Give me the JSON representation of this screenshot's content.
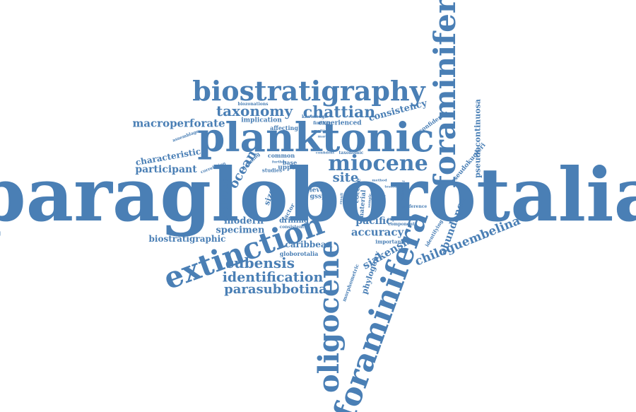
{
  "colors": {
    "word": "#4a7fb5",
    "background": "#ffffff"
  },
  "words": [
    {
      "id": "paragloborotalia",
      "text": "paragloborotalia"
    },
    {
      "id": "planktonic",
      "text": "planktonic"
    },
    {
      "id": "biostratigraphy",
      "text": "biostratigraphy"
    },
    {
      "id": "foraminiferal",
      "text": "foraminiferal"
    },
    {
      "id": "foraminifera",
      "text": "foraminifera"
    },
    {
      "id": "extinction",
      "text": "extinction"
    },
    {
      "id": "oligocene",
      "text": "oligocene"
    },
    {
      "id": "miocene",
      "text": "miocene"
    },
    {
      "id": "taxonomy",
      "text": "taxonomy"
    },
    {
      "id": "chattian",
      "text": "chattian"
    },
    {
      "id": "macroperforate",
      "text": "macroperforate"
    },
    {
      "id": "consistency",
      "text": "consistency"
    },
    {
      "id": "characteristic",
      "text": "characteristic"
    },
    {
      "id": "participant",
      "text": "participant"
    },
    {
      "id": "biostratigraphic",
      "text": "biostratigraphic"
    },
    {
      "id": "cubensis",
      "text": "cubensis"
    },
    {
      "id": "identification",
      "text": "identification"
    },
    {
      "id": "parasubbotina",
      "text": "parasubbotina"
    },
    {
      "id": "chiloguembelina",
      "text": "chiloguembelina"
    },
    {
      "id": "accuracy",
      "text": "accuracy"
    },
    {
      "id": "pacific",
      "text": "pacific"
    },
    {
      "id": "specimen",
      "text": "specimen"
    },
    {
      "id": "modern",
      "text": "modern"
    },
    {
      "id": "ocean",
      "text": "ocean"
    },
    {
      "id": "site",
      "text": "site"
    },
    {
      "id": "siakensis",
      "text": "siakensis"
    },
    {
      "id": "abundance",
      "text": "abundance"
    },
    {
      "id": "evolution",
      "text": "evolution"
    },
    {
      "id": "phylogeny",
      "text": "phylogeny"
    },
    {
      "id": "caribbean",
      "text": "caribbean"
    },
    {
      "id": "globorotalia",
      "text": "globorotalia"
    },
    {
      "id": "pseudocontinuosa",
      "text": "pseudocontinuosa"
    },
    {
      "id": "pseudokugleri",
      "text": "pseudokugleri"
    },
    {
      "id": "confidence",
      "text": "confidence"
    },
    {
      "id": "implication",
      "text": "implication"
    },
    {
      "id": "affecting",
      "text": "affecting"
    },
    {
      "id": "biozonations",
      "text": "biozonations"
    },
    {
      "id": "experienced",
      "text": "experienced"
    },
    {
      "id": "knowledge",
      "text": "knowledge"
    },
    {
      "id": "finding",
      "text": "finding"
    },
    {
      "id": "multiple",
      "text": "multiple"
    },
    {
      "id": "marker",
      "text": "marker"
    },
    {
      "id": "correlation",
      "text": "correlation"
    },
    {
      "id": "assemblage",
      "text": "assemblage"
    },
    {
      "id": "defining",
      "text": "defining"
    },
    {
      "id": "common",
      "text": "common"
    },
    {
      "id": "base",
      "text": "base"
    },
    {
      "id": "upper",
      "text": "upper"
    },
    {
      "id": "studies",
      "text": "studies"
    },
    {
      "id": "confident",
      "text": "confident"
    },
    {
      "id": "taxonomic",
      "text": "taxonomic"
    },
    {
      "id": "level",
      "text": "level"
    },
    {
      "id": "gssp",
      "text": "gssp"
    },
    {
      "id": "size",
      "text": "size"
    },
    {
      "id": "drilling",
      "text": "drilling"
    },
    {
      "id": "factor",
      "text": "factor"
    },
    {
      "id": "material",
      "text": "material"
    },
    {
      "id": "eocene",
      "text": "eocene"
    },
    {
      "id": "experience",
      "text": "experience"
    },
    {
      "id": "component",
      "text": "component"
    },
    {
      "id": "preference",
      "text": "preference"
    },
    {
      "id": "identifying",
      "text": "identifying"
    },
    {
      "id": "important",
      "text": "important"
    },
    {
      "id": "morphometric",
      "text": "morphometric"
    },
    {
      "id": "consistent",
      "text": "consistent"
    },
    {
      "id": "further",
      "text": "further"
    },
    {
      "id": "sequential",
      "text": "sequential"
    },
    {
      "id": "method",
      "text": "method"
    },
    {
      "id": "bioevent",
      "text": "bioevent"
    },
    {
      "id": "tested",
      "text": "tested"
    },
    {
      "id": "genus",
      "text": "genus"
    },
    {
      "id": "tuned",
      "text": "tuned"
    },
    {
      "id": "result",
      "text": "result"
    },
    {
      "id": "sample",
      "text": "sample"
    }
  ]
}
